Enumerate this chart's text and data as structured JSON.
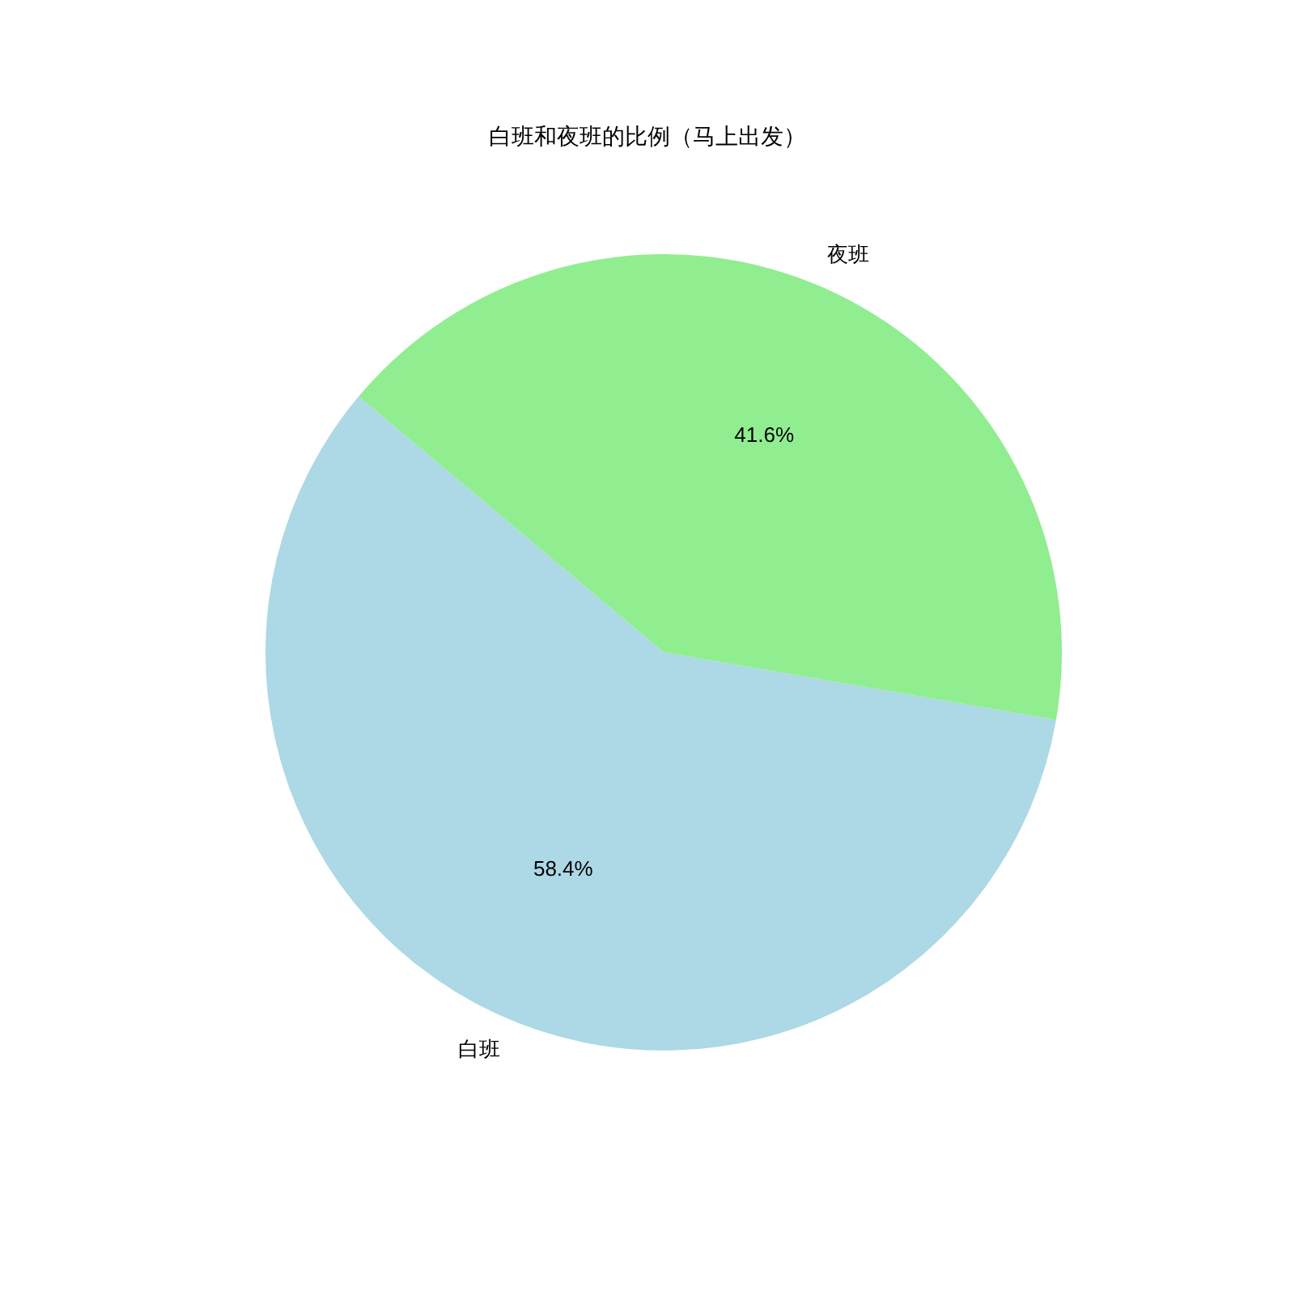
{
  "chart_data": {
    "type": "pie",
    "title": "白班和夜班的比例（马上出发）",
    "categories": [
      "白班",
      "夜班"
    ],
    "values": [
      58.4,
      41.6
    ],
    "value_labels": [
      "58.4%",
      "41.6%"
    ],
    "colors": [
      "#add8e6",
      "#90ee90"
    ],
    "legend": false
  }
}
